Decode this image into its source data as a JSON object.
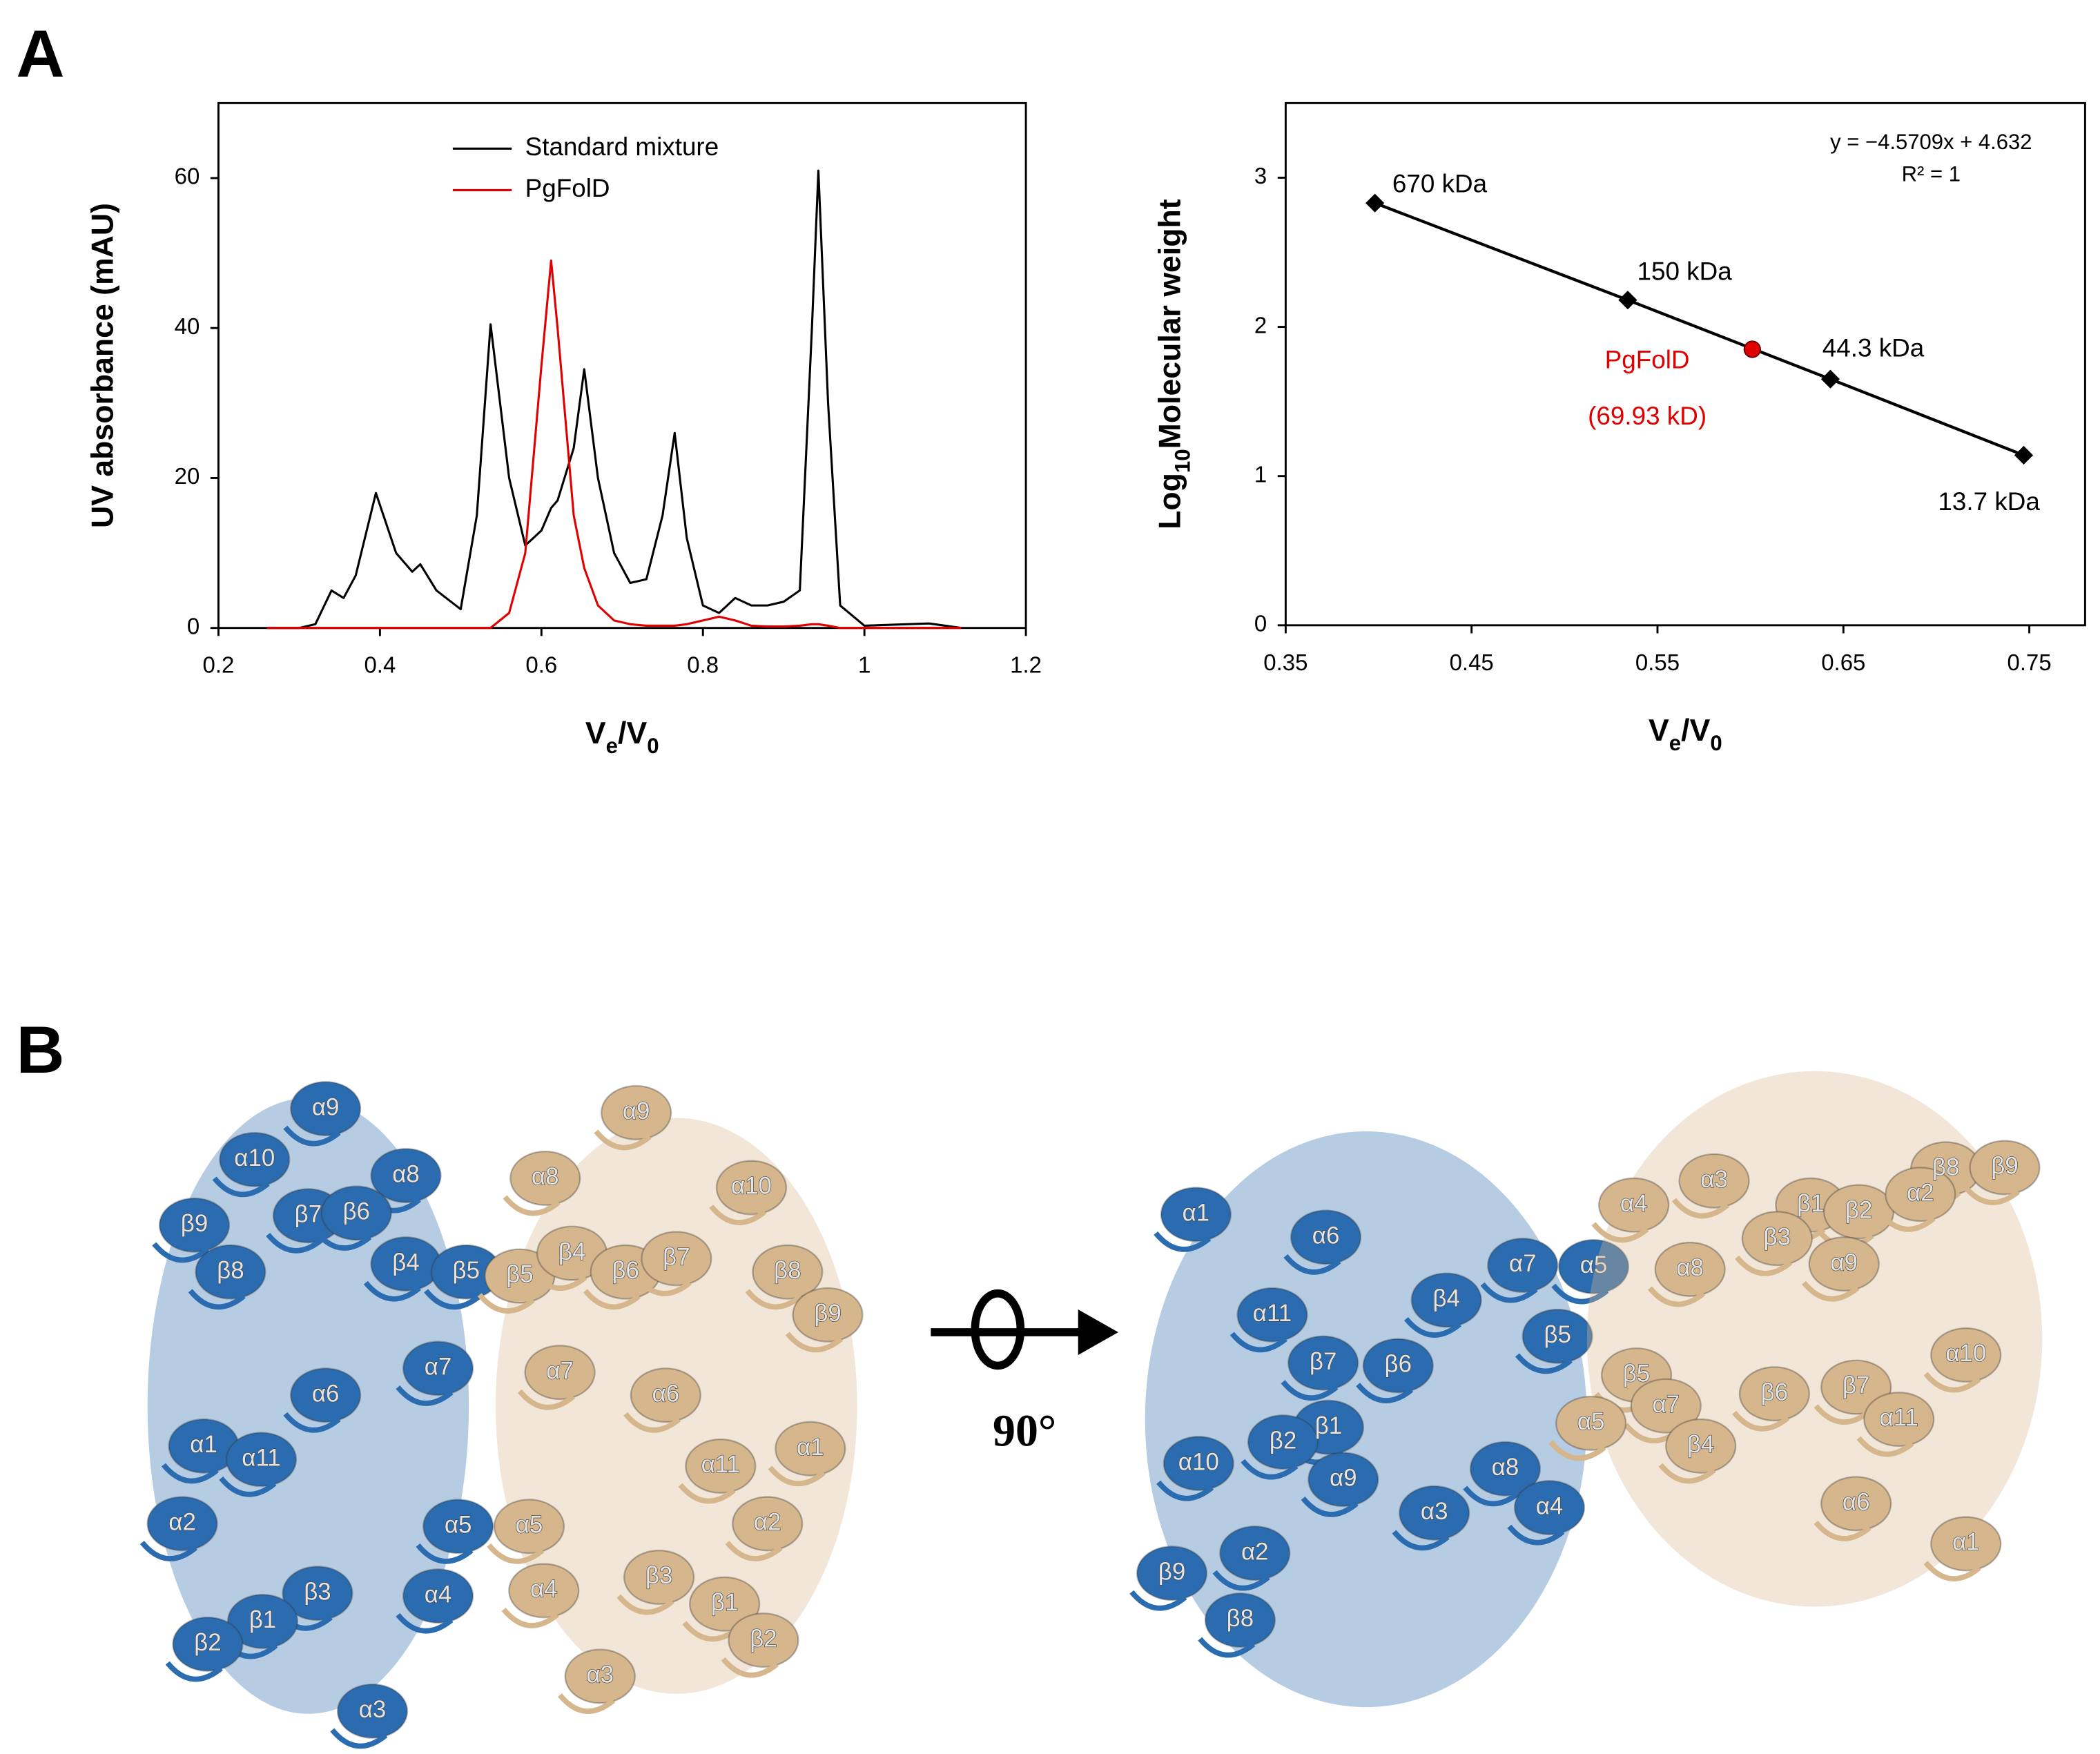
{
  "panel_labels": [
    "A",
    "B"
  ],
  "chart_data": [
    {
      "type": "line",
      "y_label": "UV absorbance (mAU)",
      "x_label": "Ve/V0",
      "x": [
        0.26,
        0.3,
        0.32,
        0.34,
        0.355,
        0.37,
        0.395,
        0.42,
        0.44,
        0.45,
        0.47,
        0.5,
        0.52,
        0.537,
        0.56,
        0.58,
        0.6,
        0.612,
        0.62,
        0.64,
        0.653,
        0.67,
        0.69,
        0.71,
        0.73,
        0.75,
        0.765,
        0.78,
        0.8,
        0.82,
        0.84,
        0.86,
        0.88,
        0.9,
        0.92,
        0.935,
        0.943,
        0.955,
        0.97,
        1.0,
        1.08,
        1.12
      ],
      "series": [
        {
          "name": "Standard mixture",
          "color": "#000000",
          "values": [
            0,
            0,
            0.5,
            5,
            4,
            7,
            18,
            10,
            7.5,
            8.5,
            5,
            2.5,
            15,
            40.5,
            20,
            11,
            13,
            16,
            17,
            24,
            34.5,
            20,
            10,
            6,
            6.5,
            15,
            26,
            12,
            3,
            2,
            4,
            3,
            3,
            3.5,
            5,
            40,
            61,
            30,
            3,
            0.3,
            0.6,
            0
          ]
        },
        {
          "name": "PgFolD",
          "color": "#e00000",
          "values": [
            0,
            0,
            0,
            0,
            0,
            0,
            0,
            0,
            0,
            0,
            0,
            0,
            0,
            0,
            2,
            10,
            35,
            49,
            40,
            15,
            8,
            3,
            1,
            0.5,
            0.3,
            0.3,
            0.3,
            0.5,
            1,
            1.5,
            1,
            0.3,
            0.2,
            0.2,
            0.3,
            0.5,
            0.5,
            0.3,
            0,
            0,
            0,
            0
          ]
        }
      ],
      "xlim": [
        0.2,
        1.2
      ],
      "xticks": [
        0.2,
        0.4,
        0.6,
        0.8,
        1,
        1.2
      ],
      "ylim": [
        0,
        70
      ],
      "yticks": [
        0,
        20,
        40,
        60
      ]
    },
    {
      "type": "scatter",
      "y_label": "Log10Molecular weight",
      "x_label": "Ve/V0",
      "x": [
        0.398,
        0.534,
        0.643,
        0.747
      ],
      "values": [
        2.83,
        2.18,
        1.65,
        1.14
      ],
      "point_labels": [
        "670 kDa",
        "150 kDa",
        "44.3 kDa",
        "13.7 kDa"
      ],
      "color": "#000000",
      "highlight": {
        "x": 0.601,
        "value": 1.85,
        "labels": [
          "PgFolD",
          "(69.93 kD)"
        ],
        "color": "#e00000"
      },
      "annotations": [
        "y = −4.5709x + 4.632",
        "R² = 1"
      ],
      "trendline": true,
      "xlim": [
        0.35,
        0.78
      ],
      "xticks": [
        0.35,
        0.45,
        0.55,
        0.65,
        0.75
      ],
      "ylim": [
        0,
        3.5
      ],
      "yticks": [
        0,
        1,
        2,
        3
      ]
    }
  ],
  "structure": {
    "rotation": "90°",
    "views": [
      {
        "chains": [
          {
            "color": "#2b6cb0",
            "labels": [
              "α9",
              "α10",
              "α8",
              "β9",
              "β7",
              "β6",
              "β4",
              "β5",
              "β8",
              "α7",
              "α6",
              "α1",
              "α11",
              "α2",
              "α5",
              "α4",
              "β3",
              "β1",
              "β2",
              "α3"
            ]
          },
          {
            "color": "#d6b68c",
            "labels": [
              "α9",
              "α8",
              "α10",
              "β5",
              "β4",
              "β6",
              "β7",
              "β8",
              "β9",
              "α7",
              "α6",
              "α1",
              "α11",
              "α5",
              "α2",
              "α4",
              "β3",
              "β1",
              "β2",
              "α3"
            ]
          }
        ]
      },
      {
        "chains": [
          {
            "color": "#2b6cb0",
            "labels": [
              "α1",
              "α6",
              "α11",
              "β4",
              "α7",
              "α5",
              "β5",
              "β7",
              "β6",
              "β1",
              "α10",
              "β2",
              "α9",
              "α8",
              "α3",
              "α4",
              "α2",
              "β9",
              "β8"
            ]
          },
          {
            "color": "#d6b68c",
            "labels": [
              "α4",
              "α3",
              "β8",
              "β1",
              "β2",
              "α2",
              "β9",
              "β3",
              "α8",
              "α9",
              "α10",
              "β5",
              "α7",
              "β6",
              "β7",
              "α11",
              "β4",
              "α6",
              "α1",
              "α5"
            ]
          }
        ]
      }
    ]
  }
}
